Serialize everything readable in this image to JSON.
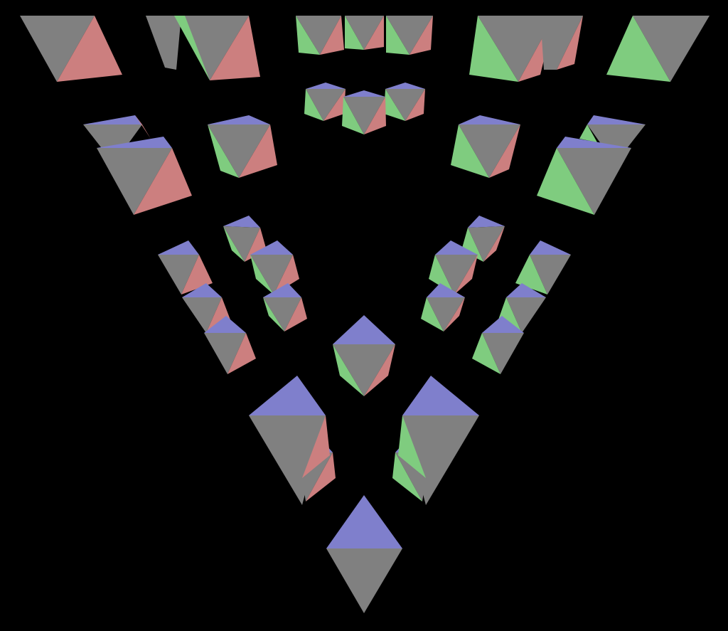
{
  "scene": {
    "background": "#000000",
    "face_colors": {
      "gray": "#808080",
      "red": "#cc7f7f",
      "green": "#7fcc7f",
      "blue": "#7f7fcc"
    }
  },
  "shapes": [
    "octahedron-top-left-1",
    "octahedron-top-left-2",
    "octahedron-top-left-3",
    "octahedron-top-center-1",
    "octahedron-top-center-2",
    "octahedron-top-center-3",
    "octahedron-top-right-1",
    "octahedron-top-right-2",
    "octahedron-top-right-3",
    "octahedron-upper-center-1",
    "octahedron-upper-center-2",
    "octahedron-upper-center-3",
    "octahedron-left-1",
    "octahedron-left-2",
    "octahedron-left-3",
    "octahedron-right-1",
    "octahedron-right-2",
    "octahedron-right-3",
    "octahedron-mid-left-1",
    "octahedron-mid-left-2",
    "octahedron-mid-left-3",
    "octahedron-mid-left-4",
    "octahedron-mid-left-5",
    "octahedron-mid-left-6",
    "octahedron-mid-right-1",
    "octahedron-mid-right-2",
    "octahedron-mid-right-3",
    "octahedron-mid-right-4",
    "octahedron-mid-right-5",
    "octahedron-mid-right-6",
    "octahedron-center",
    "octahedron-lower-left-1",
    "octahedron-lower-left-2",
    "octahedron-lower-right-1",
    "octahedron-lower-right-2",
    "octahedron-bottom"
  ]
}
